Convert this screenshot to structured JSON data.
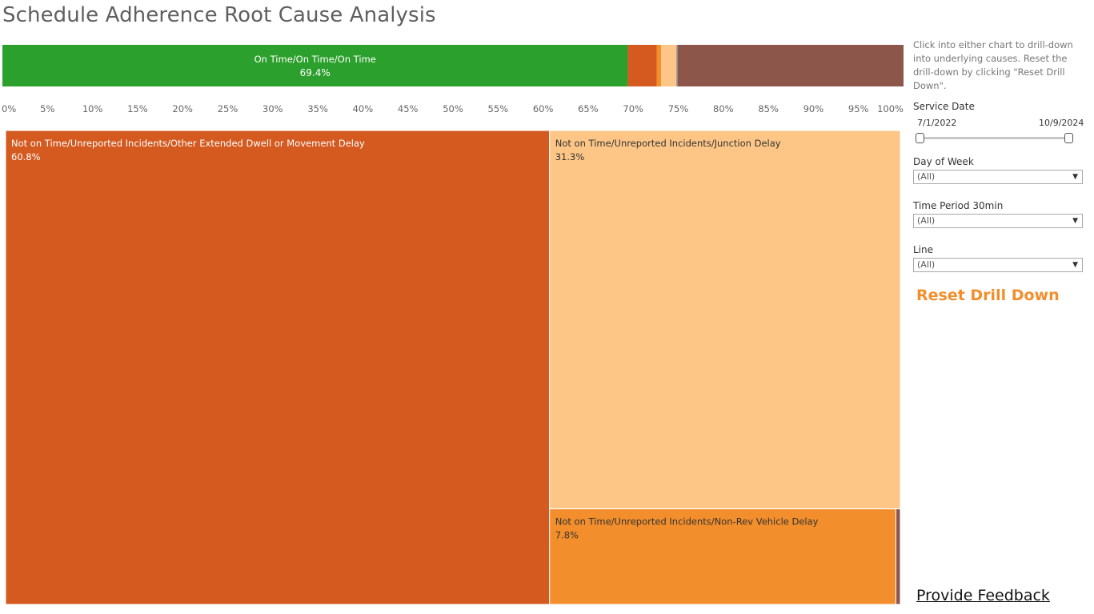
{
  "title": "Schedule Adherence Root Cause Analysis",
  "side_note": "Click into either chart to drill-down into underlying causes. Reset the drill-down by clicking \"Reset Drill Down\".",
  "filters": {
    "service_date": {
      "label": "Service Date",
      "start": "7/1/2022",
      "end": "10/9/2024"
    },
    "day_of_week": {
      "label": "Day of Week",
      "value": "(All)"
    },
    "time_period": {
      "label": "Time Period 30min",
      "value": "(All)"
    },
    "line": {
      "label": "Line",
      "value": "(All)"
    }
  },
  "reset_label": "Reset Drill Down",
  "feedback_label": "Provide Feedback",
  "chart_data": [
    {
      "type": "bar",
      "orientation": "horizontal-stacked",
      "xlim": [
        0,
        100
      ],
      "x_unit": "%",
      "ticks": [
        "0%",
        "5%",
        "10%",
        "15%",
        "20%",
        "25%",
        "30%",
        "35%",
        "40%",
        "45%",
        "50%",
        "55%",
        "60%",
        "65%",
        "70%",
        "75%",
        "80%",
        "85%",
        "90%",
        "95%",
        "100%"
      ],
      "segments": [
        {
          "label": "On Time/On Time/On Time",
          "label_text": "On Time/On Time/On Time",
          "value_text": "69.4%",
          "value": 69.4,
          "color": "#2ca02c"
        },
        {
          "value": 3.2,
          "color": "#d45a20"
        },
        {
          "value": 0.5,
          "color": "#f28e2b"
        },
        {
          "value": 1.7,
          "color": "#fdc686"
        },
        {
          "value": 0.15,
          "color": "#8c8c8c"
        },
        {
          "value": 25.05,
          "color": "#8c564b"
        }
      ]
    },
    {
      "type": "treemap",
      "items": [
        {
          "label": "Not on Time/Unreported Incidents/Other Extended Dwell or Movement Delay",
          "value": 60.8,
          "value_text": "60.8%",
          "color": "#d45a20",
          "text_color": "#ffffff"
        },
        {
          "label": "Not on Time/Unreported Incidents/Junction Delay",
          "value": 31.3,
          "value_text": "31.3%",
          "color": "#fdc686",
          "text_color": "#333333"
        },
        {
          "label": "Not on Time/Unreported Incidents/Non-Rev Vehicle Delay",
          "value": 7.8,
          "value_text": "7.8%",
          "color": "#f28e2b",
          "text_color": "#333333"
        },
        {
          "value": 0.1,
          "color": "#8c564b"
        }
      ]
    }
  ]
}
